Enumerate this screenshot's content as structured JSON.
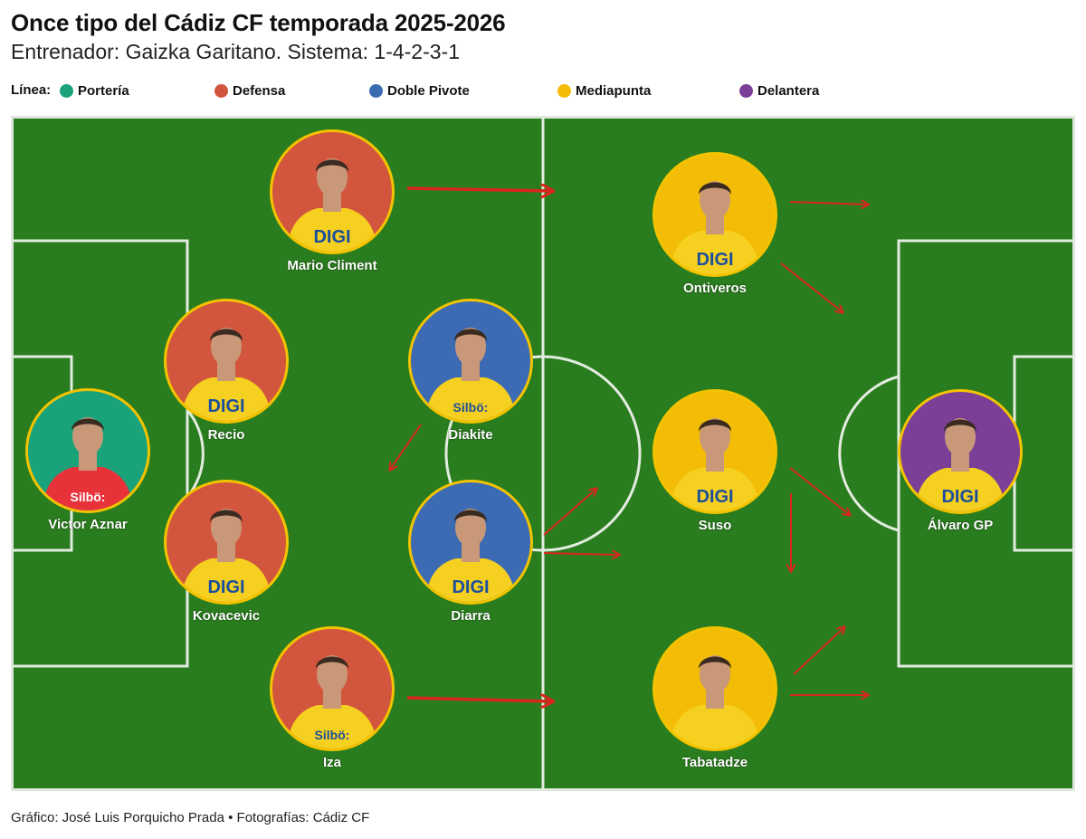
{
  "title": "Once tipo del Cádiz CF temporada 2025-2026",
  "subtitle": "Entrenador: Gaizka Garitano. Sistema: 1-4-2-3-1",
  "legend": {
    "title": "Línea:",
    "items": [
      {
        "label": "Portería",
        "color": "#1aa37a"
      },
      {
        "label": "Defensa",
        "color": "#d2553d"
      },
      {
        "label": "Doble Pivote",
        "color": "#3d6bb3"
      },
      {
        "label": "Mediapunta",
        "color": "#f3bc06"
      },
      {
        "label": "Delantera",
        "color": "#7b3f98"
      }
    ]
  },
  "players": [
    {
      "name": "Victor Aznar",
      "line": "Portería",
      "color": "#1aa37a",
      "kit": "red",
      "sponsor": "Silbö:"
    },
    {
      "name": "Mario Climent",
      "line": "Defensa",
      "color": "#d2553d",
      "kit": "yellow",
      "sponsor": "DIGI"
    },
    {
      "name": "Recio",
      "line": "Defensa",
      "color": "#d2553d",
      "kit": "yellow",
      "sponsor": "DIGI"
    },
    {
      "name": "Kovacevic",
      "line": "Defensa",
      "color": "#d2553d",
      "kit": "yellow",
      "sponsor": "DIGI"
    },
    {
      "name": "Iza",
      "line": "Defensa",
      "color": "#d2553d",
      "kit": "yellow",
      "sponsor": "Silbö:"
    },
    {
      "name": "Diakite",
      "line": "Doble Pivote",
      "color": "#3d6bb3",
      "kit": "yellow",
      "sponsor": "Silbö:"
    },
    {
      "name": "Diarra",
      "line": "Doble Pivote",
      "color": "#3d6bb3",
      "kit": "yellow",
      "sponsor": "DIGI"
    },
    {
      "name": "Ontiveros",
      "line": "Mediapunta",
      "color": "#f3bc06",
      "kit": "yellow",
      "sponsor": "DIGI"
    },
    {
      "name": "Suso",
      "line": "Mediapunta",
      "color": "#f3bc06",
      "kit": "yellow",
      "sponsor": "DIGI"
    },
    {
      "name": "Tabatadze",
      "line": "Mediapunta",
      "color": "#f3bc06",
      "kit": "yellow",
      "sponsor": ""
    },
    {
      "name": "Álvaro GP",
      "line": "Delantera",
      "color": "#7b3f98",
      "kit": "yellow",
      "sponsor": "DIGI"
    }
  ],
  "credit": "Gráfico: José Luis Porquicho Prada • Fotografías: Cádiz CF"
}
